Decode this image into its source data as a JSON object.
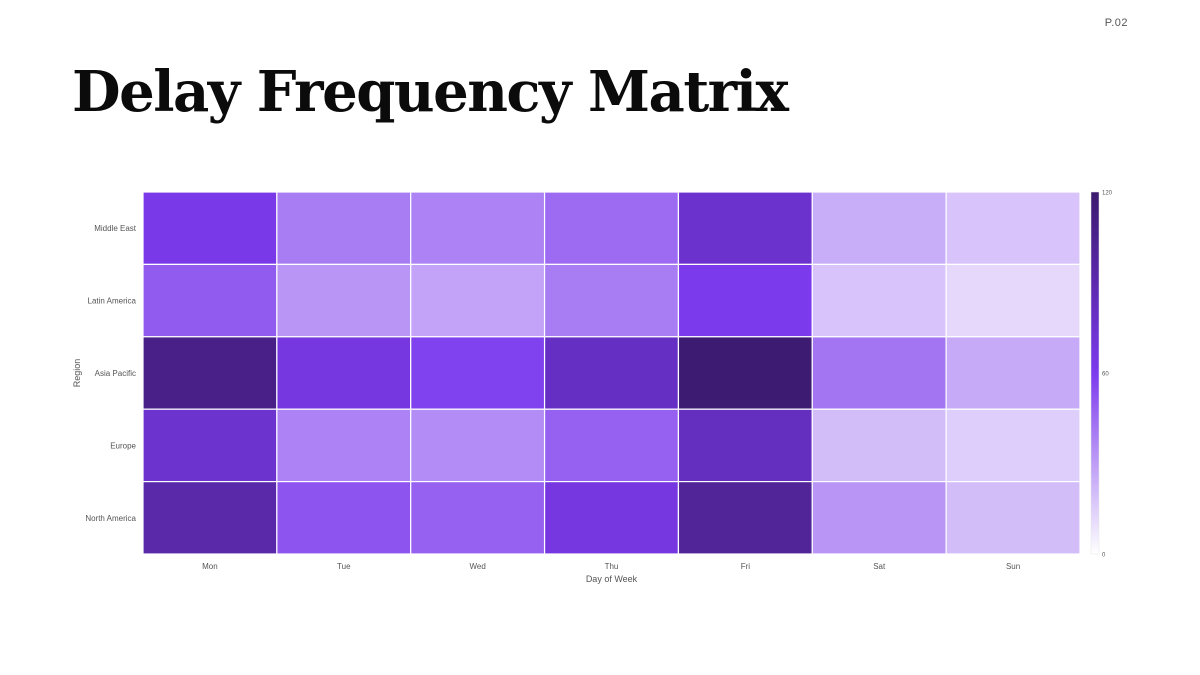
{
  "page": {
    "number": "P.02",
    "title": "Delay Frequency Matrix"
  },
  "chart_data": {
    "type": "heatmap",
    "title": "Delay Frequency Matrix",
    "xlabel": "Day of Week",
    "ylabel": "Region",
    "x": [
      "Mon",
      "Tue",
      "Wed",
      "Thu",
      "Fri",
      "Sat",
      "Sun"
    ],
    "y": [
      "Middle East",
      "Latin America",
      "Asia Pacific",
      "Europe",
      "North America"
    ],
    "values": [
      [
        62,
        40,
        38,
        45,
        75,
        25,
        18
      ],
      [
        50,
        32,
        28,
        40,
        60,
        18,
        12
      ],
      [
        108,
        66,
        58,
        80,
        118,
        42,
        26
      ],
      [
        74,
        38,
        35,
        48,
        82,
        20,
        15
      ],
      [
        92,
        52,
        48,
        66,
        100,
        32,
        20
      ]
    ],
    "colorbar": {
      "min": 0,
      "max": 120,
      "ticks": [
        0,
        60,
        120
      ]
    },
    "colors": {
      "low": "#ffffff",
      "mid": "#7c3aed",
      "high": "#3b1a6e"
    }
  }
}
